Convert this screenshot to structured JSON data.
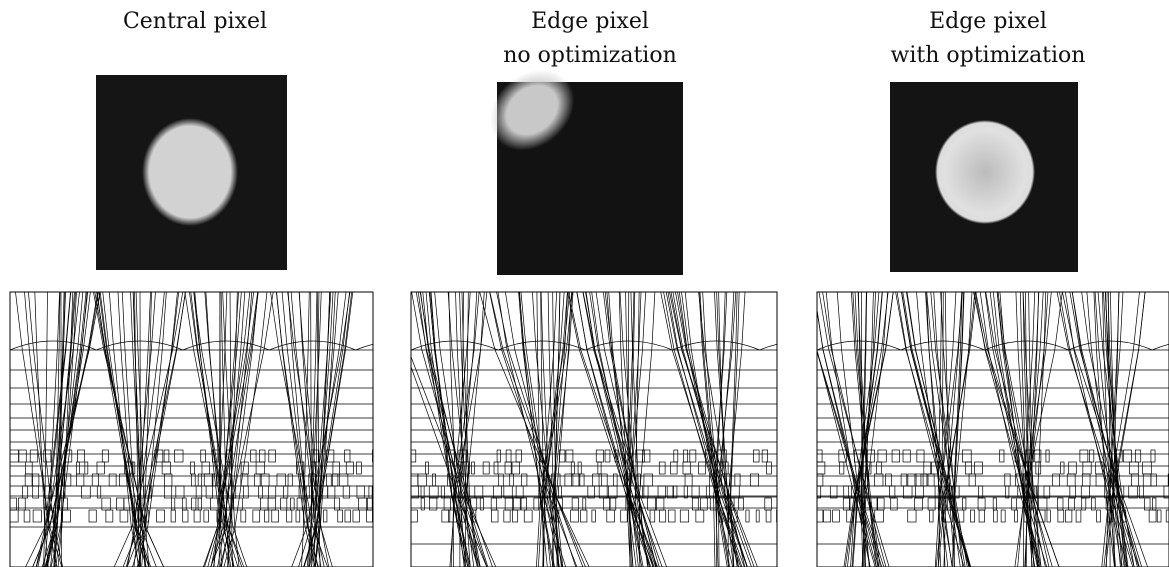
{
  "panels": [
    {
      "title": [
        "Central pixel"
      ]
    },
    {
      "title": [
        "Edge pixel",
        "no optimization"
      ]
    },
    {
      "title": [
        "Edge pixel",
        "with optimization"
      ]
    }
  ]
}
